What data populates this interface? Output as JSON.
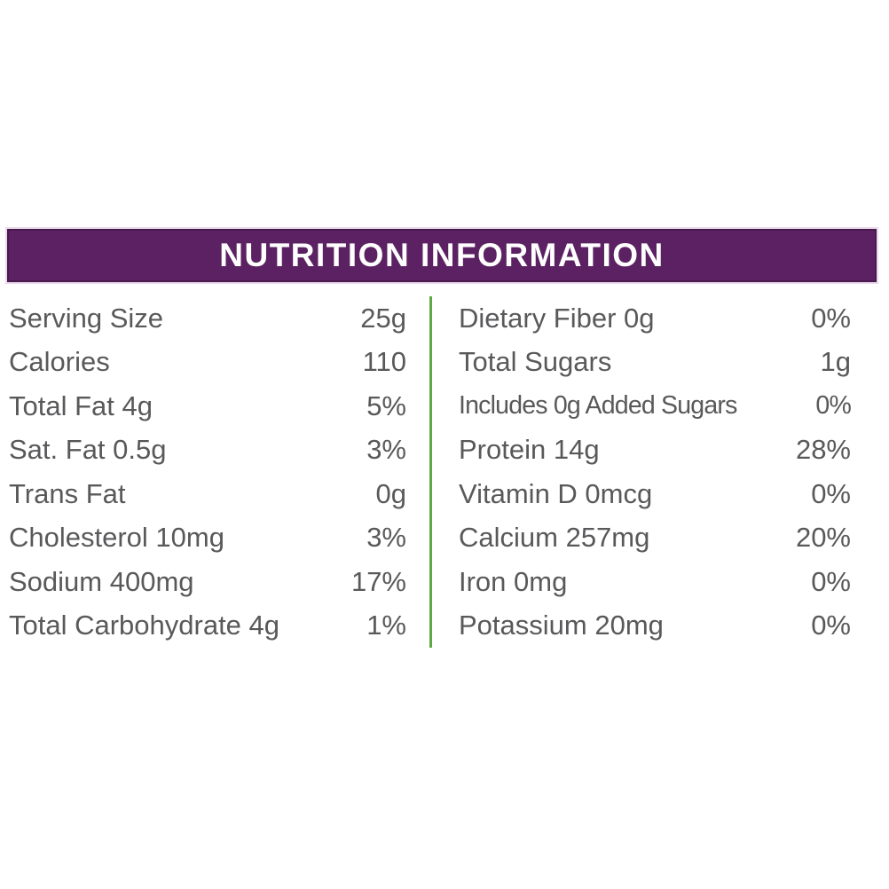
{
  "header": {
    "title": "NUTRITION INFORMATION"
  },
  "colors": {
    "header_bg": "#5c2162",
    "header_text": "#ffffff",
    "divider_green": "#60a845",
    "row_text": "#59595b"
  },
  "left_rows": [
    {
      "label": "Serving Size",
      "value": "25g"
    },
    {
      "label": "Calories",
      "value": "110"
    },
    {
      "label": "Total Fat 4g",
      "value": "5%"
    },
    {
      "label": "Sat. Fat 0.5g",
      "value": "3%"
    },
    {
      "label": "Trans Fat",
      "value": "0g"
    },
    {
      "label": "Cholesterol 10mg",
      "value": "3%"
    },
    {
      "label": "Sodium 400mg",
      "value": "17%"
    },
    {
      "label": "Total Carbohydrate 4g",
      "value": "1%"
    }
  ],
  "right_rows": [
    {
      "label": "Dietary Fiber 0g",
      "value": "0%"
    },
    {
      "label": "Total Sugars",
      "value": "1g"
    },
    {
      "label": "Includes 0g Added Sugars",
      "value": "0%"
    },
    {
      "label": "Protein 14g",
      "value": "28%"
    },
    {
      "label": "Vitamin D 0mcg",
      "value": "0%"
    },
    {
      "label": "Calcium 257mg",
      "value": "20%"
    },
    {
      "label": "Iron 0mg",
      "value": "0%"
    },
    {
      "label": "Potassium 20mg",
      "value": "0%"
    }
  ]
}
